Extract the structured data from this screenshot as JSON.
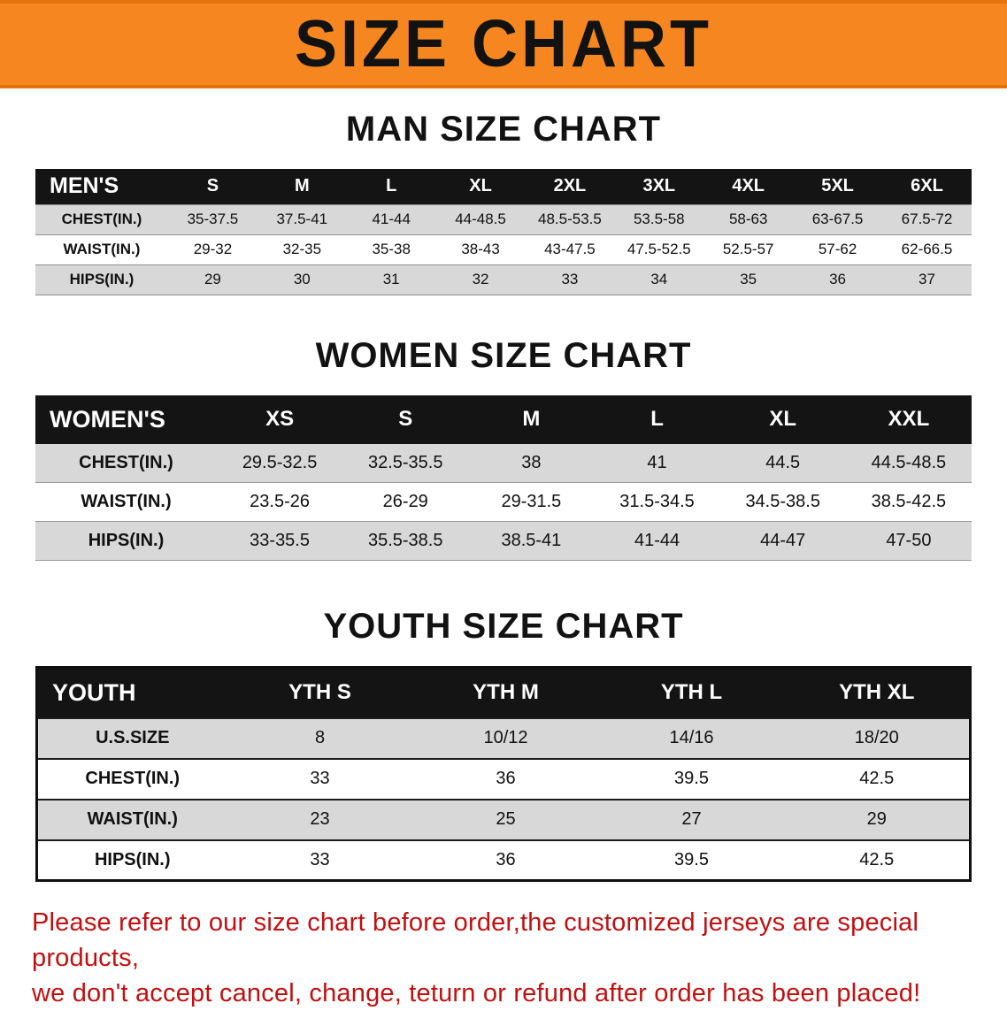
{
  "banner": {
    "title": "SIZE CHART",
    "bg_color": "#f6861f",
    "text_color": "#121212"
  },
  "colors": {
    "table_header_bg": "#141414",
    "table_header_text": "#ffffff",
    "row_shade": "#d8d8d8",
    "disclaimer_text": "#c21010"
  },
  "chart_data": [
    {
      "type": "table",
      "name": "men",
      "title": "MAN SIZE CHART",
      "columns": [
        "MEN'S",
        "S",
        "M",
        "L",
        "XL",
        "2XL",
        "3XL",
        "4XL",
        "5XL",
        "6XL"
      ],
      "rows": [
        [
          "CHEST(IN.)",
          "35-37.5",
          "37.5-41",
          "41-44",
          "44-48.5",
          "48.5-53.5",
          "53.5-58",
          "58-63",
          "63-67.5",
          "67.5-72"
        ],
        [
          "WAIST(IN.)",
          "29-32",
          "32-35",
          "35-38",
          "38-43",
          "43-47.5",
          "47.5-52.5",
          "52.5-57",
          "57-62",
          "62-66.5"
        ],
        [
          "HIPS(IN.)",
          "29",
          "30",
          "31",
          "32",
          "33",
          "34",
          "35",
          "36",
          "37"
        ]
      ]
    },
    {
      "type": "table",
      "name": "women",
      "title": "WOMEN SIZE CHART",
      "columns": [
        "WOMEN'S",
        "XS",
        "S",
        "M",
        "L",
        "XL",
        "XXL"
      ],
      "rows": [
        [
          "CHEST(IN.)",
          "29.5-32.5",
          "32.5-35.5",
          "38",
          "41",
          "44.5",
          "44.5-48.5"
        ],
        [
          "WAIST(IN.)",
          "23.5-26",
          "26-29",
          "29-31.5",
          "31.5-34.5",
          "34.5-38.5",
          "38.5-42.5"
        ],
        [
          "HIPS(IN.)",
          "33-35.5",
          "35.5-38.5",
          "38.5-41",
          "41-44",
          "44-47",
          "47-50"
        ]
      ]
    },
    {
      "type": "table",
      "name": "youth",
      "title": "YOUTH SIZE CHART",
      "columns": [
        "YOUTH",
        "YTH S",
        "YTH M",
        "YTH L",
        "YTH XL"
      ],
      "rows": [
        [
          "U.S.SIZE",
          "8",
          "10/12",
          "14/16",
          "18/20"
        ],
        [
          "CHEST(IN.)",
          "33",
          "36",
          "39.5",
          "42.5"
        ],
        [
          "WAIST(IN.)",
          "23",
          "25",
          "27",
          "29"
        ],
        [
          "HIPS(IN.)",
          "33",
          "36",
          "39.5",
          "42.5"
        ]
      ]
    }
  ],
  "footer": {
    "lines": [
      "Please refer to our size chart before order,the customized jerseys are special products,",
      "we don't accept cancel, change, teturn or refund after order has been placed!"
    ]
  }
}
